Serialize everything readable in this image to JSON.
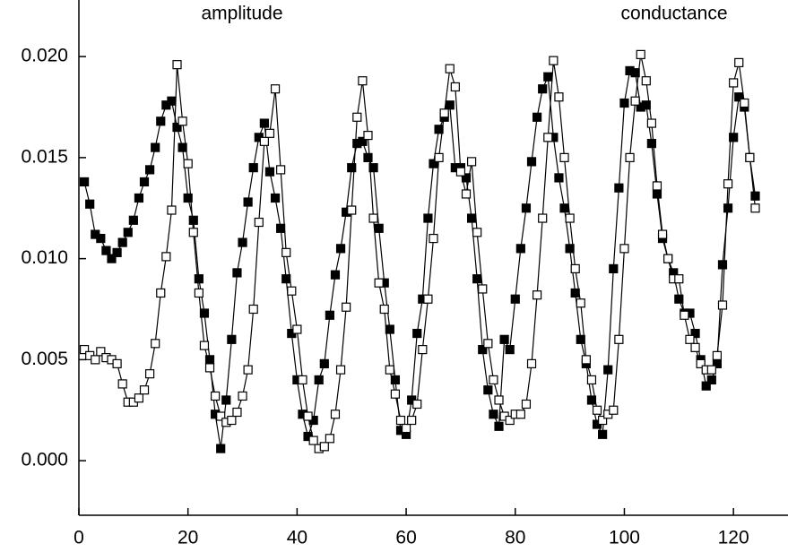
{
  "chart_data": {
    "type": "line",
    "x": [
      1,
      2,
      3,
      4,
      5,
      6,
      7,
      8,
      9,
      10,
      11,
      12,
      13,
      14,
      15,
      16,
      17,
      18,
      19,
      20,
      21,
      22,
      23,
      24,
      25,
      26,
      27,
      28,
      29,
      30,
      31,
      32,
      33,
      34,
      35,
      36,
      37,
      38,
      39,
      40,
      41,
      42,
      43,
      44,
      45,
      46,
      47,
      48,
      49,
      50,
      51,
      52,
      53,
      54,
      55,
      56,
      57,
      58,
      59,
      60,
      61,
      62,
      63,
      64,
      65,
      66,
      67,
      68,
      69,
      70,
      71,
      72,
      73,
      74,
      75,
      76,
      77,
      78,
      79,
      80,
      81,
      82,
      83,
      84,
      85,
      86,
      87,
      88,
      89,
      90,
      91,
      92,
      93,
      94,
      95,
      96,
      97,
      98,
      99,
      100,
      101,
      102,
      103,
      104,
      105,
      106,
      107,
      108,
      109,
      110,
      111,
      112,
      113,
      114,
      115,
      116,
      117,
      118,
      119,
      120,
      121,
      122,
      123,
      124
    ],
    "series": [
      {
        "name": "amplitude",
        "color": "#000000",
        "marker_fill": "#000000",
        "values": [
          0.0138,
          0.0127,
          0.0112,
          0.011,
          0.0104,
          0.01,
          0.0103,
          0.0108,
          0.0113,
          0.0119,
          0.013,
          0.0138,
          0.0144,
          0.0155,
          0.0168,
          0.0176,
          0.0178,
          0.0165,
          0.0155,
          0.013,
          0.0119,
          0.009,
          0.0073,
          0.005,
          0.0023,
          0.0006,
          0.003,
          0.006,
          0.0093,
          0.0108,
          0.0128,
          0.0145,
          0.016,
          0.0167,
          0.0143,
          0.013,
          0.0115,
          0.009,
          0.0063,
          0.004,
          0.0023,
          0.0012,
          0.002,
          0.004,
          0.0048,
          0.0072,
          0.0092,
          0.0105,
          0.0123,
          0.0145,
          0.0157,
          0.0158,
          0.015,
          0.0145,
          0.0115,
          0.0088,
          0.0065,
          0.004,
          0.0015,
          0.0013,
          0.003,
          0.0063,
          0.008,
          0.012,
          0.0147,
          0.0164,
          0.017,
          0.0176,
          0.0145,
          0.0145,
          0.014,
          0.012,
          0.009,
          0.0055,
          0.0035,
          0.0023,
          0.0017,
          0.006,
          0.0055,
          0.008,
          0.0105,
          0.0125,
          0.0148,
          0.017,
          0.0184,
          0.019,
          0.016,
          0.014,
          0.0125,
          0.0105,
          0.0083,
          0.006,
          0.0048,
          0.003,
          0.0018,
          0.0013,
          0.0045,
          0.0095,
          0.0135,
          0.0177,
          0.0193,
          0.0192,
          0.0175,
          0.0176,
          0.0157,
          0.0132,
          0.011,
          0.01,
          0.0093,
          0.008,
          0.0073,
          0.0073,
          0.0063,
          0.005,
          0.0037,
          0.004,
          0.0048,
          0.0097,
          0.0125,
          0.016,
          0.018,
          0.0175,
          0.015,
          0.0131
        ]
      },
      {
        "name": "conductance",
        "color": "#000000",
        "marker_fill": "#ffffff",
        "values": [
          0.0055,
          0.0052,
          0.005,
          0.0054,
          0.0051,
          0.005,
          0.0048,
          0.0038,
          0.0029,
          0.0029,
          0.0031,
          0.0035,
          0.0043,
          0.0058,
          0.0083,
          0.0101,
          0.0124,
          0.0196,
          0.0168,
          0.0147,
          0.0113,
          0.0083,
          0.0057,
          0.0046,
          0.0032,
          0.0022,
          0.0019,
          0.002,
          0.0024,
          0.0032,
          0.0045,
          0.0075,
          0.0118,
          0.0158,
          0.0162,
          0.0184,
          0.0144,
          0.0103,
          0.0084,
          0.0065,
          0.004,
          0.0022,
          0.001,
          0.0006,
          0.0007,
          0.0011,
          0.0023,
          0.0045,
          0.0076,
          0.0124,
          0.017,
          0.0188,
          0.0161,
          0.012,
          0.0088,
          0.0075,
          0.0045,
          0.0033,
          0.002,
          0.0016,
          0.002,
          0.0028,
          0.0055,
          0.008,
          0.011,
          0.015,
          0.0172,
          0.0194,
          0.0185,
          0.0143,
          0.0132,
          0.0148,
          0.0113,
          0.0085,
          0.0058,
          0.004,
          0.003,
          0.0022,
          0.002,
          0.0023,
          0.0023,
          0.0028,
          0.0048,
          0.0082,
          0.012,
          0.016,
          0.0198,
          0.018,
          0.015,
          0.012,
          0.0095,
          0.0078,
          0.005,
          0.004,
          0.0025,
          0.002,
          0.0023,
          0.0025,
          0.006,
          0.0105,
          0.015,
          0.0178,
          0.0201,
          0.0188,
          0.0167,
          0.0136,
          0.0112,
          0.01,
          0.009,
          0.009,
          0.0072,
          0.006,
          0.0056,
          0.0048,
          0.0045,
          0.0045,
          0.0052,
          0.0077,
          0.0137,
          0.0187,
          0.0197,
          0.0177,
          0.015,
          0.0125
        ]
      }
    ],
    "xlim": [
      0,
      130
    ],
    "xticks": [
      0,
      20,
      40,
      60,
      80,
      100,
      120
    ],
    "ylim": [
      -0.0027,
      0.0228
    ],
    "yticks": [
      {
        "value": 0,
        "label": "0.000"
      },
      {
        "value": 0.005,
        "label": "0.005"
      },
      {
        "value": 0.01,
        "label": "0.010"
      },
      {
        "value": 0.015,
        "label": "0.015"
      },
      {
        "value": 0.02,
        "label": "0.020"
      }
    ],
    "grid": false
  }
}
